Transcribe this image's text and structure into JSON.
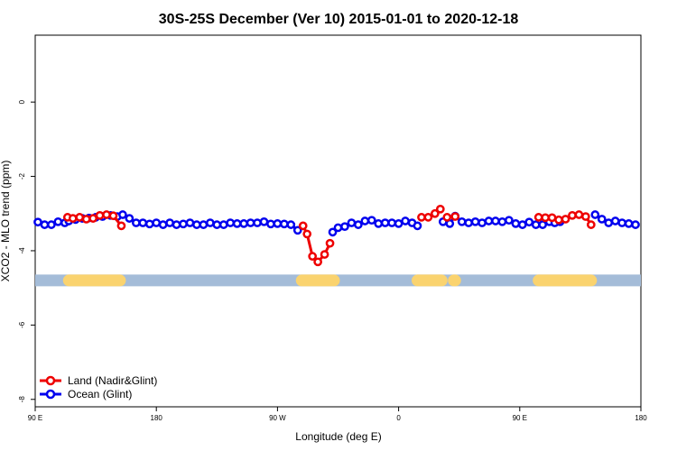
{
  "chart_data": {
    "type": "line",
    "title": "30S-25S December (Ver 10)   2015-01-01 to 2020-12-18",
    "xlabel": "Longitude (deg E)",
    "ylabel": "XCO2 - MLO trend (ppm)",
    "xlim": [
      90,
      540
    ],
    "ylim": [
      -8.2,
      1.8
    ],
    "x_ticks": [
      {
        "value": 90,
        "label": "90 E"
      },
      {
        "value": 180,
        "label": "180"
      },
      {
        "value": 270,
        "label": "90 W"
      },
      {
        "value": 360,
        "label": "0"
      },
      {
        "value": 450,
        "label": "90 E"
      },
      {
        "value": 540,
        "label": "180"
      }
    ],
    "y_ticks": [
      {
        "value": 0,
        "label": "0"
      },
      {
        "value": -2,
        "label": "-2"
      },
      {
        "value": -4,
        "label": "-4"
      },
      {
        "value": -6,
        "label": "-6"
      },
      {
        "value": -8,
        "label": "-8"
      }
    ],
    "grid": false,
    "legend_position": "bottom-left",
    "land_band": {
      "y": -4.8,
      "ocean_color": "#a4bcd8",
      "land_color": "#fad36f",
      "land_segments": [
        [
          115,
          153
        ],
        [
          288,
          312
        ],
        [
          374,
          392
        ],
        [
          401,
          402
        ],
        [
          464,
          503
        ]
      ]
    },
    "series": [
      {
        "name": "Land (Nadir&Glint)",
        "color": "#ee0000",
        "points": [
          [
            114,
            -3.1
          ],
          [
            118,
            -3.13
          ],
          [
            123,
            -3.1
          ],
          [
            128,
            -3.15
          ],
          [
            133,
            -3.13
          ],
          [
            138,
            -3.05
          ],
          [
            143,
            -3.03
          ],
          [
            148,
            -3.06
          ],
          [
            154,
            -3.33
          ],
          [
            289,
            -3.33
          ],
          [
            292,
            -3.55
          ],
          [
            296,
            -4.15
          ],
          [
            300,
            -4.3
          ],
          [
            305,
            -4.1
          ],
          [
            309,
            -3.8
          ],
          [
            377,
            -3.1
          ],
          [
            382,
            -3.1
          ],
          [
            387,
            -3.0
          ],
          [
            391,
            -2.88
          ],
          [
            396,
            -3.1
          ],
          [
            402,
            -3.08
          ],
          [
            464,
            -3.1
          ],
          [
            469,
            -3.11
          ],
          [
            474,
            -3.11
          ],
          [
            479,
            -3.17
          ],
          [
            484,
            -3.15
          ],
          [
            489,
            -3.05
          ],
          [
            494,
            -3.03
          ],
          [
            499,
            -3.08
          ],
          [
            503,
            -3.3
          ]
        ],
        "segments": [
          [
            0,
            9
          ],
          [
            9,
            15
          ],
          [
            15,
            19
          ],
          [
            19,
            21
          ],
          [
            21,
            30
          ]
        ]
      },
      {
        "name": "Ocean (Glint)",
        "color": "#0000ee",
        "points": [
          [
            92,
            -3.23
          ],
          [
            97,
            -3.3
          ],
          [
            102,
            -3.3
          ],
          [
            107,
            -3.22
          ],
          [
            112,
            -3.25
          ],
          [
            115,
            -3.2
          ],
          [
            120,
            -3.16
          ],
          [
            125,
            -3.13
          ],
          [
            130,
            -3.12
          ],
          [
            135,
            -3.1
          ],
          [
            140,
            -3.08
          ],
          [
            146,
            -3.05
          ],
          [
            151,
            -3.08
          ],
          [
            155,
            -3.03
          ],
          [
            160,
            -3.13
          ],
          [
            165,
            -3.25
          ],
          [
            170,
            -3.25
          ],
          [
            175,
            -3.28
          ],
          [
            180,
            -3.25
          ],
          [
            185,
            -3.3
          ],
          [
            190,
            -3.25
          ],
          [
            195,
            -3.3
          ],
          [
            200,
            -3.28
          ],
          [
            205,
            -3.25
          ],
          [
            210,
            -3.3
          ],
          [
            215,
            -3.3
          ],
          [
            220,
            -3.25
          ],
          [
            225,
            -3.3
          ],
          [
            230,
            -3.3
          ],
          [
            235,
            -3.25
          ],
          [
            240,
            -3.27
          ],
          [
            245,
            -3.27
          ],
          [
            250,
            -3.25
          ],
          [
            255,
            -3.25
          ],
          [
            260,
            -3.22
          ],
          [
            265,
            -3.28
          ],
          [
            270,
            -3.27
          ],
          [
            275,
            -3.28
          ],
          [
            280,
            -3.3
          ],
          [
            285,
            -3.45
          ],
          [
            311,
            -3.5
          ],
          [
            315,
            -3.38
          ],
          [
            320,
            -3.35
          ],
          [
            325,
            -3.25
          ],
          [
            330,
            -3.3
          ],
          [
            335,
            -3.2
          ],
          [
            340,
            -3.18
          ],
          [
            345,
            -3.27
          ],
          [
            350,
            -3.25
          ],
          [
            355,
            -3.25
          ],
          [
            360,
            -3.27
          ],
          [
            365,
            -3.2
          ],
          [
            370,
            -3.25
          ],
          [
            374,
            -3.33
          ],
          [
            393,
            -3.22
          ],
          [
            398,
            -3.27
          ],
          [
            402,
            -3.07
          ],
          [
            407,
            -3.22
          ],
          [
            412,
            -3.25
          ],
          [
            417,
            -3.22
          ],
          [
            422,
            -3.25
          ],
          [
            427,
            -3.2
          ],
          [
            432,
            -3.2
          ],
          [
            437,
            -3.22
          ],
          [
            442,
            -3.18
          ],
          [
            447,
            -3.27
          ],
          [
            452,
            -3.3
          ],
          [
            457,
            -3.23
          ],
          [
            462,
            -3.3
          ],
          [
            467,
            -3.3
          ],
          [
            472,
            -3.22
          ],
          [
            476,
            -3.25
          ],
          [
            480,
            -3.22
          ],
          [
            506,
            -3.03
          ],
          [
            511,
            -3.15
          ],
          [
            516,
            -3.25
          ],
          [
            521,
            -3.2
          ],
          [
            526,
            -3.25
          ],
          [
            531,
            -3.27
          ],
          [
            536,
            -3.3
          ]
        ],
        "segments": [
          [
            0,
            40
          ],
          [
            40,
            54
          ],
          [
            54,
            73
          ],
          [
            73,
            80
          ]
        ]
      }
    ]
  }
}
